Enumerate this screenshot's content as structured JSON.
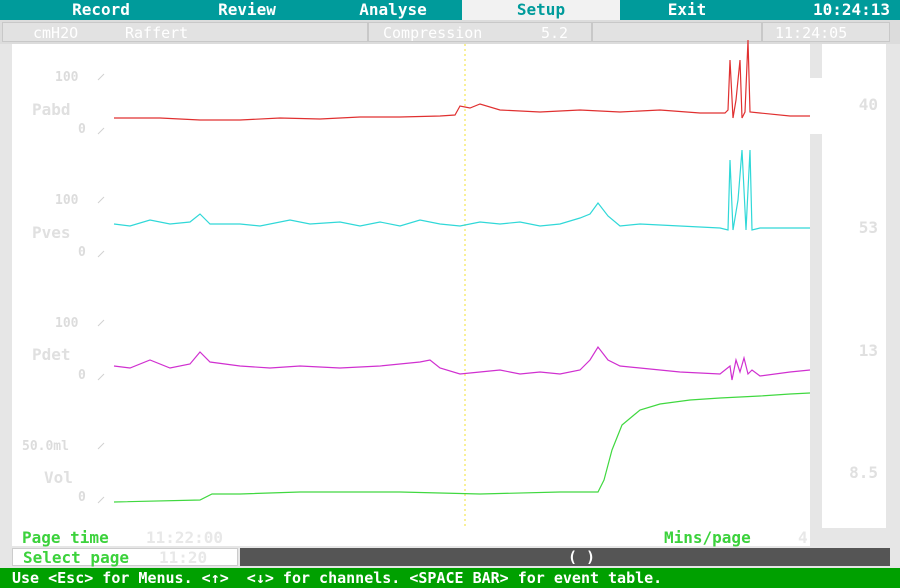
{
  "menu": {
    "items": [
      {
        "label": "Record",
        "active": false
      },
      {
        "label": "Review",
        "active": false
      },
      {
        "label": "Analyse",
        "active": false
      },
      {
        "label": "Setup",
        "active": true
      },
      {
        "label": "Exit",
        "active": false
      }
    ],
    "clock": "10:24:13"
  },
  "info": {
    "units": "cmH2O",
    "patient": "Raffert",
    "compression_label": "Compression",
    "compression_value": "5.2",
    "time": "11:24:05"
  },
  "channels": [
    {
      "name": "Pabd",
      "top": "100",
      "bottom": "0",
      "value": "40",
      "color": "#e03030"
    },
    {
      "name": "Pves",
      "top": "100",
      "bottom": "0",
      "value": "53",
      "color": "#30d8d8"
    },
    {
      "name": "Pdet",
      "top": "100",
      "bottom": "0",
      "value": "13",
      "color": "#d030d0"
    },
    {
      "name": "Vol",
      "top": "50.0ml",
      "bottom": "0",
      "value": "8.5",
      "color": "#40d840"
    }
  ],
  "footer": {
    "page_time_label": "Page time",
    "page_time_value": "11:22:00",
    "mins_label": "Mins/page",
    "mins_value": "4",
    "select_label": "Select page",
    "select_value": "11:20",
    "scroll_thumb": "( )",
    "status": "Use <Esc> for Menus. <↑>  <↓> for channels. <SPACE BAR> for event table."
  },
  "colors": {
    "menu_bg": "#009b9b",
    "status_bg": "#00a000",
    "marker": "#f0e030"
  }
}
